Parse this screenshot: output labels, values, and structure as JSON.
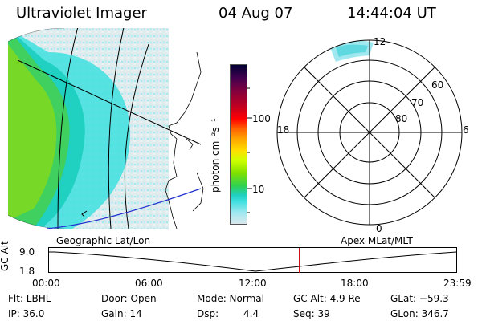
{
  "header": {
    "instrument": "Ultraviolet Imager",
    "date": "04 Aug 07",
    "time": "14:44:04 UT"
  },
  "colorbar": {
    "unit_label": "photon cm⁻²s⁻¹",
    "ticks": [
      "100",
      "10"
    ],
    "colors": [
      "#000030",
      "#400050",
      "#800040",
      "#c00020",
      "#ff0000",
      "#ff6000",
      "#ffa000",
      "#ffe000",
      "#d0ff00",
      "#80e000",
      "#30d050",
      "#20d0c0",
      "#40e0e0",
      "#a0e8f0",
      "#d8e8ec"
    ]
  },
  "polar_plot": {
    "mlt_labels": [
      "12",
      "18",
      "6",
      "0"
    ],
    "lat_labels": [
      "60",
      "70",
      "80"
    ]
  },
  "timeline": {
    "left_title": "Geographic Lat/Lon",
    "right_title": "Apex MLat/MLT",
    "axis_label": "GC Alt",
    "y_ticks": [
      "9.0",
      "1.8"
    ],
    "x_ticks": [
      "00:00",
      "06:00",
      "12:00",
      "18:00",
      "23:59"
    ],
    "marker_time": "14:44",
    "marker_color": "#cc0000"
  },
  "status": {
    "flt": "Flt: LBHL",
    "ip": "IP: 36.0",
    "door": "Door: Open",
    "gain": "Gain: 14",
    "mode": "Mode: Normal",
    "dsp_label": "Dsp:",
    "dsp_value": "4.4",
    "gc_alt": "GC Alt: 4.9 Re",
    "seq": "Seq: 39",
    "glat": "GLat: −59.3",
    "glon": "GLon: 346.7"
  }
}
